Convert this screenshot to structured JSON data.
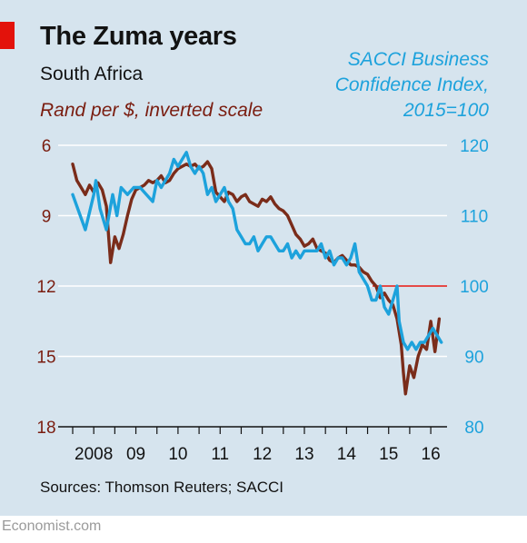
{
  "header": {
    "title": "The Zuma years",
    "subtitle": "South Africa"
  },
  "axis_labels": {
    "left": "Rand per $, inverted scale",
    "right_lines": [
      "SACCI Business",
      "Confidence Index,",
      "2015=100"
    ]
  },
  "footer": {
    "source": "Sources: Thomson Reuters; SACCI",
    "brand": "Economist.com"
  },
  "colors": {
    "rand": "#7a2c1a",
    "sacci": "#1da2dc",
    "reference": "#e3120b",
    "grid": "#ffffff",
    "background": "#d6e4ee"
  },
  "chart_data": {
    "type": "line",
    "x_ticks": [
      "2008",
      "09",
      "10",
      "11",
      "12",
      "13",
      "14",
      "15",
      "16"
    ],
    "left_axis": {
      "ticks": [
        6,
        9,
        12,
        15,
        18
      ],
      "range": [
        6,
        18
      ],
      "inverted": true
    },
    "right_axis": {
      "ticks": [
        120,
        110,
        100,
        90,
        80
      ],
      "range": [
        80,
        120
      ]
    },
    "reference_line": {
      "axis": "right",
      "value": 100
    },
    "x_range": [
      2008.0,
      2016.8
    ],
    "series": [
      {
        "axis": "left",
        "x": [
          2008.0,
          2008.1,
          2008.2,
          2008.3,
          2008.4,
          2008.5,
          2008.6,
          2008.7,
          2008.8,
          2008.85,
          2008.9,
          2009.0,
          2009.1,
          2009.2,
          2009.3,
          2009.4,
          2009.5,
          2009.6,
          2009.7,
          2009.8,
          2009.9,
          2010.0,
          2010.1,
          2010.2,
          2010.3,
          2010.4,
          2010.5,
          2010.6,
          2010.7,
          2010.8,
          2010.9,
          2011.0,
          2011.1,
          2011.2,
          2011.3,
          2011.4,
          2011.5,
          2011.6,
          2011.7,
          2011.8,
          2011.9,
          2012.0,
          2012.1,
          2012.2,
          2012.3,
          2012.4,
          2012.5,
          2012.6,
          2012.7,
          2012.8,
          2012.9,
          2013.0,
          2013.1,
          2013.2,
          2013.3,
          2013.4,
          2013.5,
          2013.6,
          2013.7,
          2013.8,
          2013.9,
          2014.0,
          2014.1,
          2014.2,
          2014.3,
          2014.4,
          2014.5,
          2014.6,
          2014.7,
          2014.8,
          2014.9,
          2015.0,
          2015.1,
          2015.2,
          2015.3,
          2015.4,
          2015.5,
          2015.6,
          2015.7,
          2015.8,
          2015.85,
          2015.9,
          2016.0,
          2016.1,
          2016.2,
          2016.3,
          2016.4,
          2016.5,
          2016.6,
          2016.7
        ],
        "values": [
          6.8,
          7.5,
          7.8,
          8.1,
          7.7,
          8.0,
          7.6,
          7.9,
          8.6,
          9.8,
          11.0,
          9.9,
          10.4,
          9.8,
          9.0,
          8.3,
          7.9,
          7.8,
          7.7,
          7.5,
          7.6,
          7.5,
          7.3,
          7.6,
          7.5,
          7.2,
          7.0,
          6.9,
          6.8,
          6.9,
          6.8,
          7.0,
          6.9,
          6.7,
          7.0,
          8.0,
          8.2,
          8.4,
          8.0,
          8.1,
          8.4,
          8.2,
          8.1,
          8.4,
          8.5,
          8.6,
          8.3,
          8.4,
          8.2,
          8.5,
          8.7,
          8.8,
          9.0,
          9.4,
          9.8,
          10.0,
          10.3,
          10.2,
          10.0,
          10.4,
          10.5,
          10.6,
          10.9,
          11.0,
          10.8,
          10.7,
          10.9,
          11.1,
          11.1,
          11.2,
          11.4,
          11.5,
          11.8,
          12.0,
          12.5,
          12.3,
          12.6,
          12.8,
          13.4,
          14.5,
          15.7,
          16.6,
          15.4,
          15.9,
          15.0,
          14.5,
          14.7,
          13.5,
          14.8,
          13.4
        ]
      },
      {
        "axis": "right",
        "x": [
          2008.0,
          2008.3,
          2008.5,
          2008.55,
          2008.65,
          2008.8,
          2008.95,
          2009.05,
          2009.15,
          2009.3,
          2009.45,
          2009.6,
          2009.75,
          2009.9,
          2010.0,
          2010.1,
          2010.2,
          2010.3,
          2010.4,
          2010.5,
          2010.6,
          2010.7,
          2010.8,
          2010.9,
          2011.0,
          2011.1,
          2011.2,
          2011.3,
          2011.4,
          2011.5,
          2011.6,
          2011.7,
          2011.8,
          2011.9,
          2012.0,
          2012.1,
          2012.2,
          2012.3,
          2012.4,
          2012.5,
          2012.6,
          2012.7,
          2012.8,
          2012.9,
          2013.0,
          2013.1,
          2013.2,
          2013.3,
          2013.4,
          2013.5,
          2013.6,
          2013.7,
          2013.8,
          2013.9,
          2014.0,
          2014.1,
          2014.2,
          2014.3,
          2014.4,
          2014.5,
          2014.6,
          2014.7,
          2014.8,
          2014.9,
          2015.0,
          2015.1,
          2015.2,
          2015.3,
          2015.4,
          2015.5,
          2015.6,
          2015.7,
          2015.75,
          2015.85,
          2015.95,
          2016.05,
          2016.15,
          2016.25,
          2016.35,
          2016.45,
          2016.55,
          2016.65,
          2016.75
        ],
        "values": [
          113,
          108,
          113,
          115,
          111,
          108,
          113,
          110,
          114,
          113,
          114,
          114,
          113,
          112,
          115,
          114,
          115,
          116,
          118,
          117,
          118,
          119,
          117,
          116,
          117,
          116,
          113,
          114,
          112,
          113,
          114,
          112,
          111,
          108,
          107,
          106,
          106,
          107,
          105,
          106,
          107,
          107,
          106,
          105,
          105,
          106,
          104,
          105,
          104,
          105,
          105,
          105,
          105,
          106,
          104,
          105,
          103,
          104,
          104,
          103,
          104,
          106,
          102,
          101,
          100,
          98,
          98,
          100,
          97,
          96,
          98,
          100,
          95,
          92,
          91,
          92,
          91,
          92,
          92,
          93,
          94,
          93,
          92
        ]
      }
    ]
  }
}
